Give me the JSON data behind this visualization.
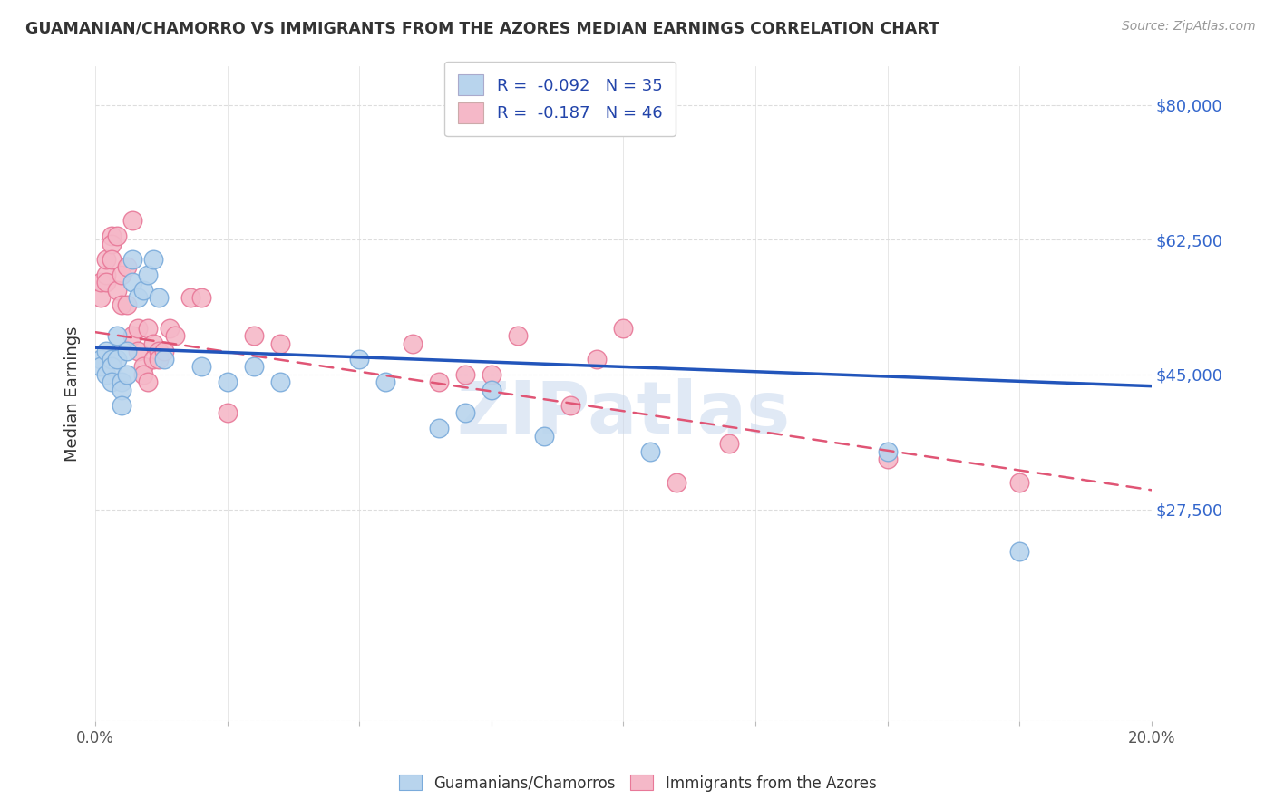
{
  "title": "GUAMANIAN/CHAMORRO VS IMMIGRANTS FROM THE AZORES MEDIAN EARNINGS CORRELATION CHART",
  "source": "Source: ZipAtlas.com",
  "ylabel": "Median Earnings",
  "yticks": [
    0,
    27500,
    45000,
    62500,
    80000
  ],
  "ytick_labels": [
    "",
    "$27,500",
    "$45,000",
    "$62,500",
    "$80,000"
  ],
  "xlim": [
    0.0,
    0.2
  ],
  "ylim": [
    0,
    85000
  ],
  "blue_R": "-0.092",
  "blue_N": "35",
  "pink_R": "-0.187",
  "pink_N": "46",
  "blue_label": "Guamanians/Chamorros",
  "pink_label": "Immigrants from the Azores",
  "blue_color": "#b8d4ed",
  "pink_color": "#f5b8c8",
  "blue_edge": "#7aabdb",
  "pink_edge": "#e87898",
  "blue_line_color": "#2255bb",
  "pink_line_color": "#e05575",
  "title_color": "#333333",
  "right_label_color": "#3366cc",
  "background_color": "#ffffff",
  "grid_color": "#dddddd",
  "blue_x": [
    0.001,
    0.001,
    0.002,
    0.002,
    0.003,
    0.003,
    0.003,
    0.004,
    0.004,
    0.005,
    0.005,
    0.005,
    0.006,
    0.006,
    0.007,
    0.007,
    0.008,
    0.009,
    0.01,
    0.011,
    0.012,
    0.013,
    0.02,
    0.025,
    0.03,
    0.035,
    0.05,
    0.055,
    0.065,
    0.07,
    0.075,
    0.085,
    0.105,
    0.15,
    0.175
  ],
  "blue_y": [
    47000,
    46000,
    48000,
    45000,
    47000,
    46000,
    44000,
    50000,
    47000,
    44000,
    43000,
    41000,
    48000,
    45000,
    60000,
    57000,
    55000,
    56000,
    58000,
    60000,
    55000,
    47000,
    46000,
    44000,
    46000,
    44000,
    47000,
    44000,
    38000,
    40000,
    43000,
    37000,
    35000,
    35000,
    22000
  ],
  "pink_x": [
    0.001,
    0.001,
    0.002,
    0.002,
    0.002,
    0.003,
    0.003,
    0.003,
    0.004,
    0.004,
    0.005,
    0.005,
    0.006,
    0.006,
    0.007,
    0.007,
    0.008,
    0.008,
    0.009,
    0.009,
    0.01,
    0.01,
    0.011,
    0.011,
    0.012,
    0.012,
    0.013,
    0.014,
    0.015,
    0.018,
    0.02,
    0.025,
    0.03,
    0.035,
    0.06,
    0.065,
    0.07,
    0.075,
    0.08,
    0.09,
    0.095,
    0.1,
    0.11,
    0.12,
    0.15,
    0.175
  ],
  "pink_y": [
    55000,
    57000,
    58000,
    60000,
    57000,
    63000,
    62000,
    60000,
    63000,
    56000,
    58000,
    54000,
    59000,
    54000,
    65000,
    50000,
    48000,
    51000,
    46000,
    45000,
    44000,
    51000,
    49000,
    47000,
    48000,
    47000,
    48000,
    51000,
    50000,
    55000,
    55000,
    40000,
    50000,
    49000,
    49000,
    44000,
    45000,
    45000,
    50000,
    41000,
    47000,
    51000,
    31000,
    36000,
    34000,
    31000
  ],
  "blue_line_x0": 0.0,
  "blue_line_x1": 0.2,
  "blue_line_y0": 48500,
  "blue_line_y1": 43500,
  "pink_line_x0": 0.0,
  "pink_line_x1": 0.2,
  "pink_line_y0": 50500,
  "pink_line_y1": 30000,
  "watermark": "ZIPatlas",
  "watermark_color": "#c8d8ee"
}
